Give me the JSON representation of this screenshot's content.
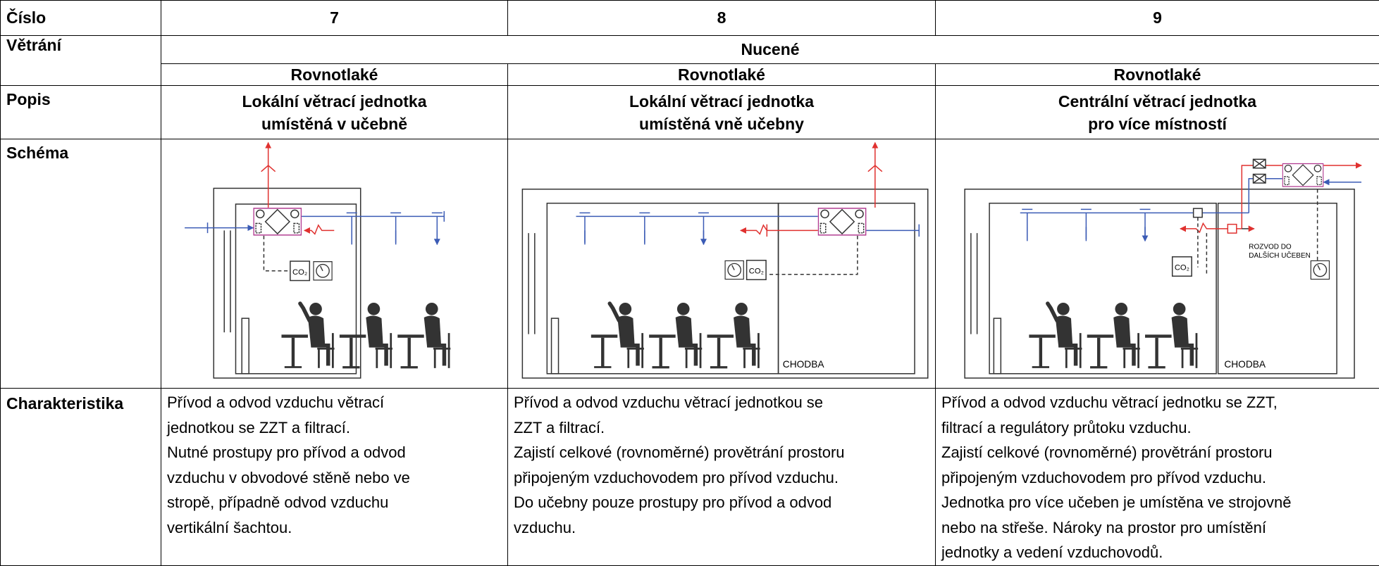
{
  "table": {
    "header": {
      "label": "Číslo",
      "columns": [
        7,
        8,
        9
      ]
    },
    "ventilation": {
      "label": "Větrání",
      "value": "Nucené",
      "types": [
        "Rovnotlaké",
        "Rovnotlaké",
        "Rovnotlaké"
      ]
    },
    "description": {
      "label": "Popis",
      "columns": [
        [
          "Lokální větrací jednotka",
          "umístěná v učebně"
        ],
        [
          "Lokální větrací jednotka",
          "umístěná vně učebny"
        ],
        [
          "Centrální větrací jednotka",
          "pro více místností"
        ]
      ]
    },
    "scheme": {
      "label": "Schéma",
      "columns": [
        {
          "sensor": "CO₂"
        },
        {
          "sensor": "CO₂",
          "corridor": "CHODBA"
        },
        {
          "sensor": "CO₂",
          "corridor": "CHODBA",
          "note": [
            "ROZVOD DO",
            "DALŠÍCH UČEBEN"
          ]
        }
      ]
    },
    "characteristics": {
      "label": "Charakteristika",
      "columns": [
        [
          "Přívod a odvod vzduchu větrací",
          "jednotkou se ZZT a filtrací.",
          "Nutné prostupy pro přívod a odvod",
          "vzduchu v obvodové stěně nebo ve",
          "stropě, případně odvod vzduchu",
          "vertikální šachtou."
        ],
        [
          "Přívod a odvod vzduchu větrací jednotkou se",
          "ZZT a filtrací.",
          "Zajistí celkové (rovnoměrné) provětrání prostoru",
          "připojeným vzduchovodem pro přívod vzduchu.",
          "Do učebny pouze prostupy pro přívod a odvod",
          "vzduchu."
        ],
        [
          "Přívod a odvod vzduchu větrací jednotku se ZZT,",
          "filtrací a regulátory průtoku vzduchu.",
          "Zajistí celkové (rovnoměrné) provětrání prostoru",
          "připojeným vzduchovodem pro přívod vzduchu.",
          "Jednotka pro více učeben je umístěna ve strojovně",
          "nebo na střeše. Nároky na prostor pro umístění",
          "jednotky a vedení vzduchovodů."
        ]
      ]
    }
  }
}
